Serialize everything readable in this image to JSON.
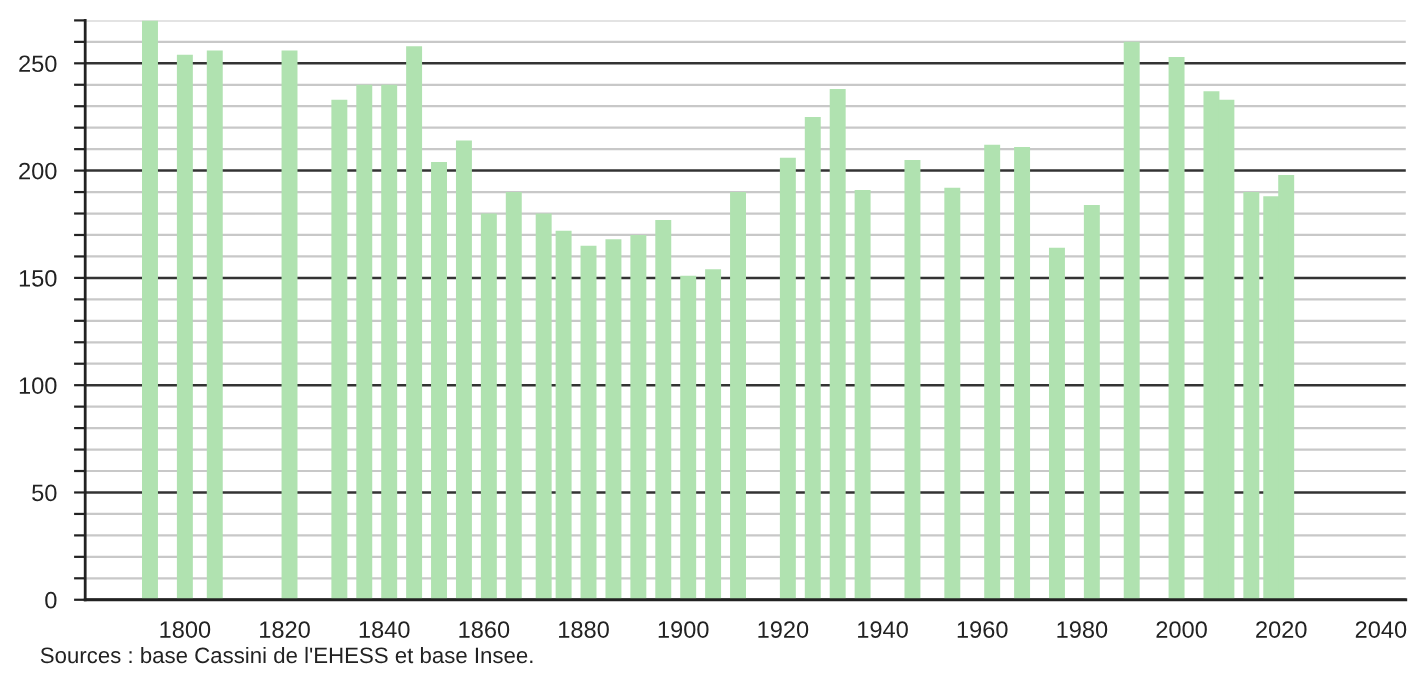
{
  "chart_data": {
    "type": "bar",
    "x": [
      1793,
      1800,
      1806,
      1821,
      1831,
      1836,
      1841,
      1846,
      1851,
      1856,
      1861,
      1866,
      1872,
      1876,
      1881,
      1886,
      1891,
      1896,
      1901,
      1906,
      1911,
      1921,
      1926,
      1931,
      1936,
      1946,
      1954,
      1962,
      1968,
      1975,
      1982,
      1990,
      1999,
      2006,
      2009,
      2014,
      2018,
      2021
    ],
    "values": [
      270,
      254,
      256,
      256,
      233,
      240,
      240,
      258,
      204,
      214,
      180,
      190,
      180,
      172,
      165,
      168,
      170,
      177,
      151,
      154,
      190,
      206,
      225,
      238,
      191,
      205,
      192,
      212,
      211,
      164,
      184,
      260,
      253,
      237,
      233,
      190,
      188,
      198
    ],
    "color": "#b0e2b0",
    "xlim": [
      1780,
      2045
    ],
    "xticks": [
      1800,
      1820,
      1840,
      1860,
      1880,
      1900,
      1920,
      1940,
      1960,
      1980,
      2000,
      2020,
      2040
    ],
    "ylim": [
      0,
      270
    ],
    "yticks": [
      0,
      {
        "value": 10,
        "label": null
      },
      {
        "value": 20,
        "label": null
      },
      {
        "value": 30,
        "label": null
      },
      {
        "value": 40,
        "label": null
      },
      50,
      {
        "value": 60,
        "label": null
      },
      {
        "value": 70,
        "label": null
      },
      {
        "value": 80,
        "label": null
      },
      {
        "value": 90,
        "label": null
      },
      100,
      {
        "value": 110,
        "label": null
      },
      {
        "value": 120,
        "label": null
      },
      {
        "value": 130,
        "label": null
      },
      {
        "value": 140,
        "label": null
      },
      150,
      {
        "value": 160,
        "label": null
      },
      {
        "value": 170,
        "label": null
      },
      {
        "value": 180,
        "label": null
      },
      {
        "value": 190,
        "label": null
      },
      200,
      {
        "value": 210,
        "label": null
      },
      {
        "value": 220,
        "label": null
      },
      {
        "value": 230,
        "label": null
      },
      {
        "value": 240,
        "label": null
      },
      250,
      {
        "value": 260,
        "label": null
      },
      {
        "value": 270,
        "label": null
      }
    ],
    "grid": "y",
    "annotations": [
      "Sources : base Cassini de l'EHESS et base Insee."
    ]
  }
}
